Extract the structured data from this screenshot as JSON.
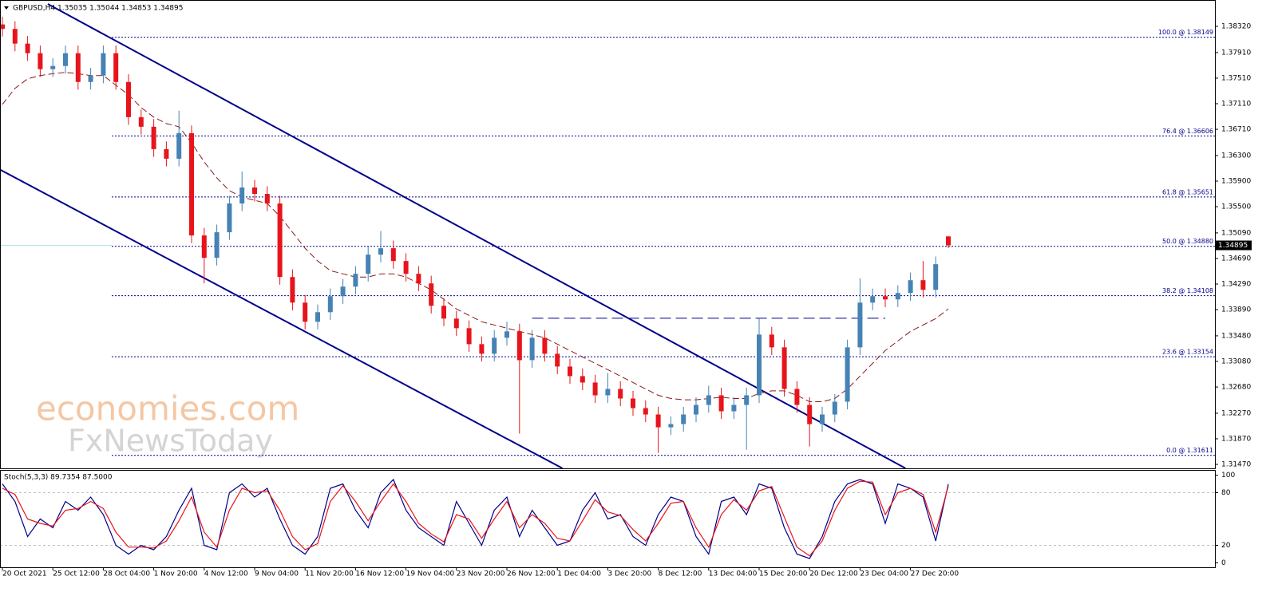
{
  "chart_data": [
    {
      "type": "candlestick",
      "title": "GBPUSD,H4  1.35035 1.35044 1.34853 1.34895",
      "categories": [
        "20 Oct 2021",
        null,
        null,
        null,
        "25 Oct 12:00",
        null,
        null,
        null,
        "28 Oct 04:00",
        null,
        null,
        null,
        "1 Nov 20:00",
        null,
        null,
        null,
        "4 Nov 12:00",
        null,
        null,
        null,
        "9 Nov 04:00",
        null,
        null,
        null,
        "11 Nov 20:00",
        null,
        null,
        null,
        "16 Nov 12:00",
        null,
        null,
        null,
        "19 Nov 04:00",
        null,
        null,
        null,
        "23 Nov 20:00",
        null,
        null,
        null,
        "26 Nov 12:00",
        null,
        null,
        null,
        "1 Dec 04:00",
        null,
        null,
        null,
        "3 Dec 20:00",
        null,
        null,
        null,
        "8 Dec 12:00",
        null,
        null,
        null,
        "13 Dec 04:00",
        null,
        null,
        null,
        "15 Dec 20:00",
        null,
        null,
        null,
        "20 Dec 12:00",
        null,
        null,
        null,
        "23 Dec 04:00",
        null,
        null,
        null,
        "27 Dec 20:00",
        null,
        null,
        null
      ],
      "open": [
        1.3835,
        1.3828,
        1.3805,
        1.379,
        1.3765,
        1.377,
        1.379,
        1.3745,
        1.3755,
        1.379,
        1.3745,
        1.369,
        1.3675,
        1.364,
        1.3625,
        1.3665,
        1.3505,
        1.347,
        1.351,
        1.3555,
        1.358,
        1.357,
        1.3555,
        1.344,
        1.34,
        1.337,
        1.3385,
        1.341,
        1.3425,
        1.3445,
        1.3475,
        1.3485,
        1.3465,
        1.3445,
        1.343,
        1.3395,
        1.3375,
        1.336,
        1.3335,
        1.332,
        1.3345,
        1.3355,
        1.331,
        1.3345,
        1.332,
        1.33,
        1.3285,
        1.3275,
        1.3255,
        1.3265,
        1.325,
        1.3235,
        1.3225,
        1.3205,
        1.321,
        1.3225,
        1.324,
        1.3255,
        1.323,
        1.324,
        1.3255,
        1.335,
        1.333,
        1.3265,
        1.324,
        1.321,
        1.3225,
        1.3245,
        1.333,
        1.34,
        1.341,
        1.3405,
        1.3415,
        1.3435,
        1.342,
        1.35035
      ],
      "high": [
        1.3847,
        1.384,
        1.3817,
        1.3802,
        1.3782,
        1.3802,
        1.3802,
        1.3767,
        1.3802,
        1.3802,
        1.3757,
        1.3702,
        1.3687,
        1.3652,
        1.37,
        1.3677,
        1.3517,
        1.3522,
        1.3567,
        1.3605,
        1.3592,
        1.3582,
        1.3567,
        1.3452,
        1.3412,
        1.3397,
        1.3422,
        1.3437,
        1.3457,
        1.3487,
        1.3512,
        1.3497,
        1.3477,
        1.3457,
        1.3442,
        1.3407,
        1.3387,
        1.3372,
        1.3347,
        1.3357,
        1.337,
        1.3367,
        1.3357,
        1.3357,
        1.3332,
        1.3312,
        1.3297,
        1.3287,
        1.329,
        1.3277,
        1.3262,
        1.3247,
        1.3237,
        1.3222,
        1.3237,
        1.3252,
        1.327,
        1.3267,
        1.3252,
        1.3267,
        1.3375,
        1.3362,
        1.3342,
        1.3277,
        1.3252,
        1.3237,
        1.3257,
        1.3342,
        1.3438,
        1.3422,
        1.3422,
        1.3427,
        1.3447,
        1.3465,
        1.3472,
        1.35044
      ],
      "low": [
        1.3816,
        1.3793,
        1.3778,
        1.3753,
        1.3753,
        1.3758,
        1.3733,
        1.3733,
        1.3743,
        1.3733,
        1.3678,
        1.3663,
        1.3628,
        1.3613,
        1.3613,
        1.3493,
        1.343,
        1.3458,
        1.3498,
        1.3543,
        1.3558,
        1.3543,
        1.3428,
        1.3388,
        1.3358,
        1.3358,
        1.3373,
        1.3398,
        1.3413,
        1.3433,
        1.3463,
        1.3453,
        1.3433,
        1.3418,
        1.3383,
        1.3363,
        1.3348,
        1.3323,
        1.3308,
        1.3308,
        1.3333,
        1.3195,
        1.3298,
        1.3308,
        1.3288,
        1.3273,
        1.3263,
        1.3243,
        1.3243,
        1.3238,
        1.3223,
        1.3213,
        1.3165,
        1.3193,
        1.3198,
        1.3213,
        1.3228,
        1.3218,
        1.3218,
        1.317,
        1.3243,
        1.3318,
        1.3253,
        1.3228,
        1.3175,
        1.3198,
        1.3213,
        1.3233,
        1.3318,
        1.3388,
        1.3393,
        1.3393,
        1.3403,
        1.3408,
        1.3408,
        1.34853
      ],
      "close": [
        1.3828,
        1.3805,
        1.379,
        1.3765,
        1.377,
        1.379,
        1.3745,
        1.3755,
        1.379,
        1.3745,
        1.369,
        1.3675,
        1.364,
        1.3625,
        1.3665,
        1.3505,
        1.347,
        1.351,
        1.3555,
        1.358,
        1.357,
        1.3555,
        1.344,
        1.34,
        1.337,
        1.3385,
        1.341,
        1.3425,
        1.3445,
        1.3475,
        1.3485,
        1.3465,
        1.3445,
        1.343,
        1.3395,
        1.3375,
        1.336,
        1.3335,
        1.332,
        1.3345,
        1.3355,
        1.331,
        1.3345,
        1.332,
        1.33,
        1.3285,
        1.3275,
        1.3255,
        1.3265,
        1.325,
        1.3235,
        1.3225,
        1.3205,
        1.321,
        1.3225,
        1.324,
        1.3255,
        1.323,
        1.324,
        1.3255,
        1.335,
        1.333,
        1.3265,
        1.324,
        1.321,
        1.3225,
        1.3245,
        1.333,
        1.34,
        1.341,
        1.3405,
        1.3415,
        1.3435,
        1.342,
        1.346,
        1.34895
      ],
      "up_color": "#4682b4",
      "down_color": "#e8141c",
      "moving_average": {
        "color": "#8b1a1a",
        "values": [
          1.371,
          1.3735,
          1.375,
          1.3755,
          1.3758,
          1.376,
          1.3758,
          1.3755,
          1.3755,
          1.374,
          1.3725,
          1.3705,
          1.369,
          1.368,
          1.3675,
          1.365,
          1.362,
          1.3595,
          1.3575,
          1.3565,
          1.356,
          1.3555,
          1.3535,
          1.351,
          1.3485,
          1.3465,
          1.345,
          1.3445,
          1.344,
          1.344,
          1.3445,
          1.3445,
          1.344,
          1.343,
          1.342,
          1.3405,
          1.339,
          1.338,
          1.337,
          1.3365,
          1.336,
          1.3355,
          1.335,
          1.3345,
          1.3335,
          1.3325,
          1.3315,
          1.3305,
          1.3295,
          1.3285,
          1.3275,
          1.3265,
          1.3255,
          1.325,
          1.3248,
          1.3248,
          1.325,
          1.3252,
          1.325,
          1.325,
          1.3258,
          1.3262,
          1.3262,
          1.3255,
          1.3245,
          1.3245,
          1.325,
          1.3265,
          1.3285,
          1.3305,
          1.3325,
          1.334,
          1.3355,
          1.3365,
          1.3375,
          1.339
        ]
      },
      "ylim": [
        1.31408,
        1.38732
      ],
      "yticks": [
        {
          "value": 1.3832,
          "label": "1.38320"
        },
        {
          "value": 1.3791,
          "label": "1.37910"
        },
        {
          "value": 1.3751,
          "label": "1.37510"
        },
        {
          "value": 1.3711,
          "label": "1.37110"
        },
        {
          "value": 1.3671,
          "label": "1.36710"
        },
        {
          "value": 1.363,
          "label": "1.36300"
        },
        {
          "value": 1.359,
          "label": "1.35900"
        },
        {
          "value": 1.355,
          "label": "1.35500"
        },
        {
          "value": 1.3509,
          "label": "1.35090"
        },
        {
          "value": 1.3469,
          "label": "1.34690"
        },
        {
          "value": 1.3429,
          "label": "1.34290"
        },
        {
          "value": 1.3389,
          "label": "1.33890"
        },
        {
          "value": 1.3348,
          "label": "1.33480"
        },
        {
          "value": 1.3308,
          "label": "1.33080"
        },
        {
          "value": 1.3268,
          "label": "1.32680"
        },
        {
          "value": 1.3227,
          "label": "1.32270"
        },
        {
          "value": 1.3187,
          "label": "1.31870"
        },
        {
          "value": 1.3147,
          "label": "1.31470"
        }
      ],
      "current_price": {
        "value": 1.34895,
        "label": "1.34895"
      },
      "levels": [
        {
          "value": 1.38149,
          "label": "100.0 @ 1.38149"
        },
        {
          "value": 1.36606,
          "label": "76.4 @ 1.36606"
        },
        {
          "value": 1.35651,
          "label": "61.8 @ 1.35651"
        },
        {
          "value": 1.3488,
          "label": "50.0 @ 1.34880"
        },
        {
          "value": 1.34108,
          "label": "38.2 @ 1.34108"
        },
        {
          "value": 1.33154,
          "label": "23.6 @ 1.33154"
        },
        {
          "value": 1.31611,
          "label": "0.0 @ 1.31611"
        }
      ],
      "trendlines": [
        {
          "x": [
            3.6,
            71.6
          ],
          "y": [
            1.38669,
            1.3141
          ]
        },
        {
          "x": [
            -0.2,
            44.4
          ],
          "y": [
            1.3608,
            1.3141
          ]
        }
      ],
      "horizontal_line": {
        "value": 1.33755,
        "x": [
          42,
          70
        ]
      },
      "watermark": [
        "economies.com",
        "FxNewsToday"
      ]
    },
    {
      "type": "line",
      "title": "Stoch(5,3,3) 89.7354 87.5000",
      "series": [
        {
          "color": "#00008b",
          "values": [
            90,
            70,
            30,
            50,
            40,
            70,
            60,
            75,
            55,
            20,
            10,
            20,
            15,
            30,
            60,
            85,
            20,
            15,
            80,
            90,
            75,
            85,
            50,
            20,
            10,
            30,
            85,
            90,
            60,
            40,
            80,
            95,
            60,
            40,
            30,
            20,
            70,
            45,
            20,
            60,
            75,
            30,
            60,
            40,
            20,
            25,
            60,
            80,
            50,
            55,
            30,
            20,
            55,
            75,
            70,
            30,
            10,
            70,
            75,
            55,
            90,
            85,
            40,
            10,
            5,
            30,
            70,
            90,
            95,
            90,
            45,
            90,
            85,
            75,
            25,
            89.7354
          ]
        },
        {
          "color": "#e8141c",
          "values": [
            85,
            78,
            50,
            45,
            42,
            60,
            62,
            70,
            62,
            35,
            18,
            18,
            17,
            25,
            48,
            75,
            35,
            18,
            60,
            85,
            80,
            82,
            60,
            30,
            15,
            22,
            70,
            88,
            70,
            48,
            70,
            90,
            70,
            45,
            33,
            24,
            55,
            50,
            28,
            50,
            70,
            40,
            55,
            45,
            28,
            25,
            48,
            72,
            58,
            54,
            38,
            25,
            45,
            68,
            70,
            40,
            18,
            55,
            72,
            60,
            82,
            87,
            52,
            18,
            8,
            25,
            60,
            85,
            93,
            92,
            55,
            80,
            85,
            78,
            35,
            87.5
          ]
        }
      ],
      "ylim": [
        -5,
        105
      ],
      "yticks": [
        100,
        80,
        20,
        0
      ],
      "levels": [
        80,
        20
      ]
    }
  ]
}
